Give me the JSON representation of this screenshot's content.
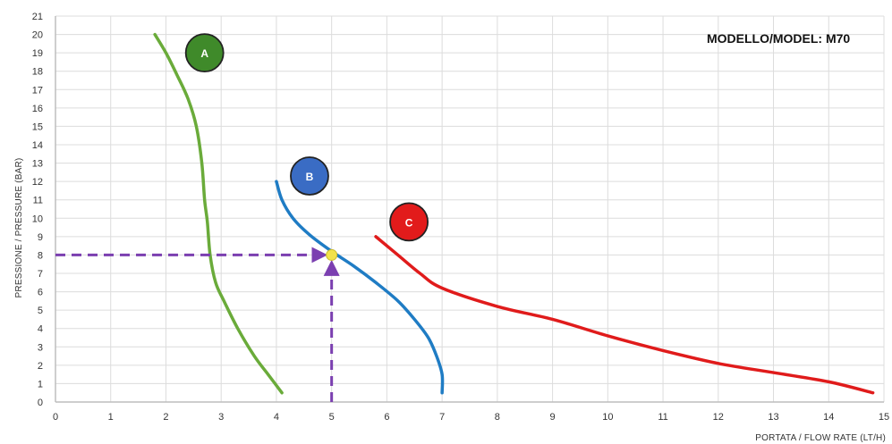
{
  "chart_data": {
    "type": "line",
    "model_label": "MODELLO/MODEL: M70",
    "xlabel": "PORTATA / FLOW RATE (LT/H)",
    "ylabel": "PRESSIONE / PRESSURE (BAR)",
    "xlim": [
      0,
      15
    ],
    "ylim": [
      0,
      21
    ],
    "x_ticks": [
      "0",
      "1",
      "2",
      "3",
      "4",
      "5",
      "6",
      "7",
      "8",
      "9",
      "10",
      "11",
      "12",
      "13",
      "14",
      "15"
    ],
    "y_ticks": [
      "0",
      "1",
      "2",
      "3",
      "4",
      "5",
      "6",
      "7",
      "8",
      "9",
      "10",
      "11",
      "12",
      "13",
      "14",
      "15",
      "16",
      "17",
      "18",
      "19",
      "20",
      "21"
    ],
    "grid": true,
    "series": [
      {
        "name": "A",
        "color": "#6aab3a",
        "badge_color": "#3f8a2a",
        "badge_at": [
          2.7,
          19.0
        ],
        "points": [
          [
            1.8,
            20
          ],
          [
            2.0,
            19.0
          ],
          [
            2.2,
            17.8
          ],
          [
            2.4,
            16.5
          ],
          [
            2.55,
            15
          ],
          [
            2.65,
            13
          ],
          [
            2.7,
            11
          ],
          [
            2.75,
            9.8
          ],
          [
            2.8,
            8
          ],
          [
            2.9,
            6.5
          ],
          [
            3.05,
            5.5
          ],
          [
            3.3,
            4
          ],
          [
            3.6,
            2.5
          ],
          [
            3.85,
            1.5
          ],
          [
            4.1,
            0.5
          ]
        ]
      },
      {
        "name": "B",
        "color": "#1f7cc4",
        "badge_color": "#3a6cc4",
        "badge_at": [
          4.6,
          12.3
        ],
        "points": [
          [
            4.0,
            12
          ],
          [
            4.1,
            11
          ],
          [
            4.3,
            10
          ],
          [
            4.6,
            9.1
          ],
          [
            5.0,
            8.2
          ],
          [
            5.4,
            7.4
          ],
          [
            5.8,
            6.5
          ],
          [
            6.2,
            5.5
          ],
          [
            6.5,
            4.5
          ],
          [
            6.75,
            3.5
          ],
          [
            6.9,
            2.5
          ],
          [
            7.0,
            1.5
          ],
          [
            7.0,
            0.5
          ]
        ]
      },
      {
        "name": "C",
        "color": "#e01b1b",
        "badge_color": "#e21b1b",
        "badge_at": [
          6.4,
          9.8
        ],
        "points": [
          [
            5.8,
            9
          ],
          [
            6.2,
            8
          ],
          [
            6.6,
            7
          ],
          [
            7.0,
            6.2
          ],
          [
            8.0,
            5.2
          ],
          [
            9.0,
            4.5
          ],
          [
            10.0,
            3.6
          ],
          [
            11.0,
            2.8
          ],
          [
            12.0,
            2.1
          ],
          [
            13.0,
            1.6
          ],
          [
            14.0,
            1.1
          ],
          [
            14.8,
            0.5
          ]
        ]
      }
    ],
    "operating_point": {
      "x": 5,
      "y": 8,
      "color": "#f2e24a",
      "line_color": "#7b3fb0"
    }
  }
}
